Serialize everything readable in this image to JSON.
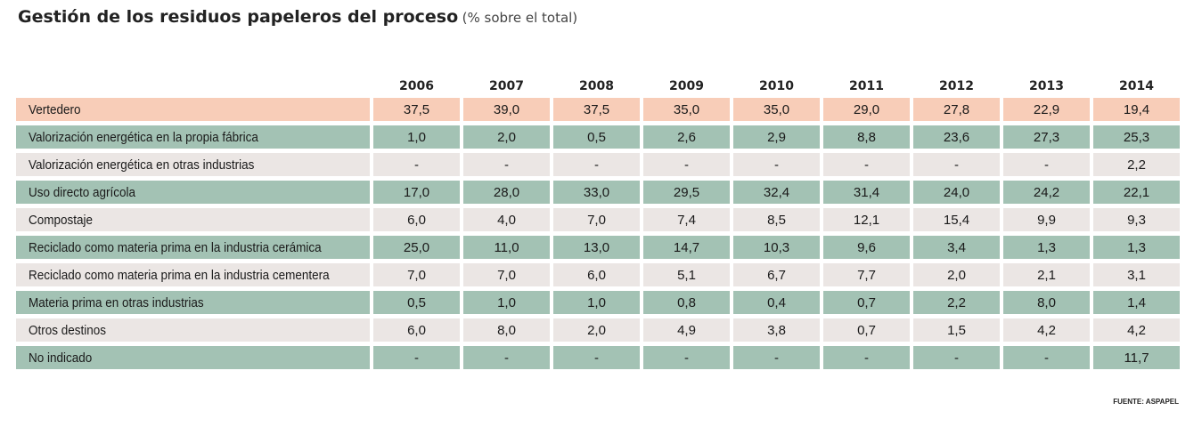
{
  "title": "Gestión de los residuos papeleros del proceso",
  "subtitle": "(% sobre el total)",
  "source": "FUENTE: ASPAPEL",
  "colors": {
    "highlight": "#f8cdb8",
    "green": "#a3c2b4",
    "grey": "#ebe6e4"
  },
  "chart_data": {
    "type": "table",
    "title": "Gestión de los residuos papeleros del proceso",
    "subtitle": "(% sobre el total)",
    "columns": [
      "2006",
      "2007",
      "2008",
      "2009",
      "2010",
      "2011",
      "2012",
      "2013",
      "2014"
    ],
    "rows": [
      {
        "label": "Vertedero",
        "style": "highlight",
        "values": [
          "37,5",
          "39,0",
          "37,5",
          "35,0",
          "35,0",
          "29,0",
          "27,8",
          "22,9",
          "19,4"
        ]
      },
      {
        "label": "Valorización energética en la propia fábrica",
        "style": "green",
        "values": [
          "1,0",
          "2,0",
          "0,5",
          "2,6",
          "2,9",
          "8,8",
          "23,6",
          "27,3",
          "25,3"
        ]
      },
      {
        "label": "Valorización energética en otras industrias",
        "style": "grey",
        "values": [
          "-",
          "-",
          "-",
          "-",
          "-",
          "-",
          "-",
          "-",
          "2,2"
        ]
      },
      {
        "label": "Uso directo agrícola",
        "style": "green",
        "values": [
          "17,0",
          "28,0",
          "33,0",
          "29,5",
          "32,4",
          "31,4",
          "24,0",
          "24,2",
          "22,1"
        ]
      },
      {
        "label": "Compostaje",
        "style": "grey",
        "values": [
          "6,0",
          "4,0",
          "7,0",
          "7,4",
          "8,5",
          "12,1",
          "15,4",
          "9,9",
          "9,3"
        ]
      },
      {
        "label": "Reciclado como materia prima en la industria cerámica",
        "style": "green",
        "values": [
          "25,0",
          "11,0",
          "13,0",
          "14,7",
          "10,3",
          "9,6",
          "3,4",
          "1,3",
          "1,3"
        ]
      },
      {
        "label": "Reciclado como materia prima en la industria cementera",
        "style": "grey",
        "values": [
          "7,0",
          "7,0",
          "6,0",
          "5,1",
          "6,7",
          "7,7",
          "2,0",
          "2,1",
          "3,1"
        ]
      },
      {
        "label": "Materia prima en otras industrias",
        "style": "green",
        "values": [
          "0,5",
          "1,0",
          "1,0",
          "0,8",
          "0,4",
          "0,7",
          "2,2",
          "8,0",
          "1,4"
        ]
      },
      {
        "label": "Otros destinos",
        "style": "grey",
        "values": [
          "6,0",
          "8,0",
          "2,0",
          "4,9",
          "3,8",
          "0,7",
          "1,5",
          "4,2",
          "4,2"
        ]
      },
      {
        "label": "No indicado",
        "style": "green",
        "values": [
          "-",
          "-",
          "-",
          "-",
          "-",
          "-",
          "-",
          "-",
          "11,7"
        ]
      }
    ]
  }
}
